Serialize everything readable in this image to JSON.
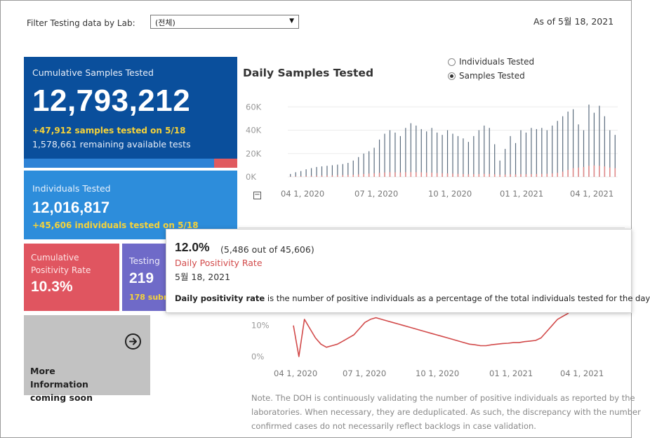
{
  "filter": {
    "label": "Filter Testing data by Lab:",
    "selected": "(전체)"
  },
  "as_of": "As of 5월 18, 2021",
  "cards": {
    "cumulative": {
      "label": "Cumulative Samples Tested",
      "value": "12,793,212",
      "sub1": "+47,912 samples tested on 5/18",
      "sub2": "1,578,661 remaining available tests",
      "bar_fraction": 0.89,
      "color": "#0a4f9c"
    },
    "individuals": {
      "label": "Individuals Tested",
      "value": "12,016,817",
      "sub": "+45,606  individuals  tested on 5/18",
      "color": "#2d8ddb"
    },
    "positivity": {
      "label": "Cumulative Positivity Rate",
      "value": "10.3%",
      "color": "#e05560"
    },
    "labs": {
      "label": "Testing",
      "value": "219",
      "sub": "178 subm",
      "color": "#6f6ac8"
    },
    "more": {
      "label": "More Information coming soon",
      "icon": "arrow-circle-right-icon"
    }
  },
  "daily_chart": {
    "title": "Daily Samples Tested",
    "radio_options": [
      {
        "label": "Individuals Tested",
        "selected": false
      },
      {
        "label": "Samples Tested",
        "selected": true
      }
    ]
  },
  "tooltip": {
    "main_value": "12.0%",
    "detail": "(5,486 out of  45,606)",
    "metric": "Daily Positivity Rate",
    "date": "5월 18, 2021",
    "note_bold": "Daily positivity rate",
    "note_rest": " is the number of positive individuals as a percentage of the total individuals tested for the day"
  },
  "footnote": [
    "Note. The DOH is continuously validating the number of positive individuals as reported by the",
    "laboratories. When necessary, they are deduplicated. As such, the discrepancy with the number",
    "confirmed cases do not necessarily reflect backlogs in case validation."
  ],
  "chart_data": [
    {
      "type": "bar",
      "title": "Daily Samples Tested",
      "x_tick_labels": [
        "04 1, 2020",
        "07 1, 2020",
        "10 1, 2020",
        "01 1, 2021",
        "04 1, 2021"
      ],
      "y_tick_labels": [
        "60K",
        "40K",
        "20K",
        "0K"
      ],
      "ylim": [
        0,
        65000
      ],
      "grid": true,
      "series": [
        {
          "color": "#5a6b7d",
          "values": [
            2500,
            4000,
            5000,
            6500,
            7500,
            8500,
            9000,
            9500,
            10000,
            10500,
            11000,
            12000,
            14000,
            17000,
            20000,
            22000,
            25000,
            32000,
            37000,
            40000,
            38000,
            35000,
            42000,
            46000,
            44000,
            41000,
            39000,
            42000,
            38000,
            36000,
            40000,
            37000,
            35000,
            33000,
            30000,
            35000,
            40000,
            44000,
            42000,
            28000,
            14000,
            24000,
            35000,
            29000,
            40000,
            38000,
            42000,
            41000,
            42000,
            40000,
            44000,
            48000,
            52000,
            56000,
            58000,
            45000,
            40000,
            62000,
            55000,
            61000,
            52000,
            40000,
            36000
          ]
        },
        {
          "color": "#e08a8a",
          "values": [
            300,
            500,
            600,
            800,
            900,
            1000,
            1100,
            1200,
            1300,
            1400,
            1500,
            1600,
            1800,
            2100,
            2500,
            2800,
            3100,
            3500,
            3800,
            4000,
            3900,
            3800,
            4000,
            4100,
            4000,
            3900,
            3700,
            3600,
            3300,
            3100,
            3000,
            2800,
            2600,
            2400,
            2200,
            2300,
            2400,
            2600,
            2500,
            2200,
            1800,
            2000,
            2200,
            2100,
            2300,
            2300,
            2400,
            2500,
            2600,
            2700,
            3000,
            3500,
            4500,
            6000,
            7500,
            8000,
            8500,
            9500,
            9800,
            9500,
            9000,
            8000,
            7500
          ]
        }
      ]
    },
    {
      "type": "line",
      "title": "Daily Positivity Rate",
      "x_tick_labels": [
        "04 1, 2020",
        "07 1, 2020",
        "10 1, 2020",
        "01 1, 2021",
        "04 1, 2021"
      ],
      "y_tick_labels": [
        "10%",
        "0%"
      ],
      "ylim": [
        0,
        14
      ],
      "color": "#d24a4a",
      "values": [
        10,
        0,
        12,
        9,
        6,
        4,
        3,
        3.5,
        4,
        5,
        6,
        7,
        9,
        11,
        12,
        12.5,
        12,
        11.5,
        11,
        10.5,
        10,
        9.5,
        9,
        8.5,
        8,
        7.5,
        7,
        6.5,
        6,
        5.5,
        5,
        4.5,
        4,
        3.8,
        3.5,
        3.5,
        3.8,
        4,
        4.2,
        4.3,
        4.5,
        4.5,
        4.8,
        5,
        5.2,
        6,
        8,
        10,
        12,
        13,
        14
      ]
    }
  ]
}
